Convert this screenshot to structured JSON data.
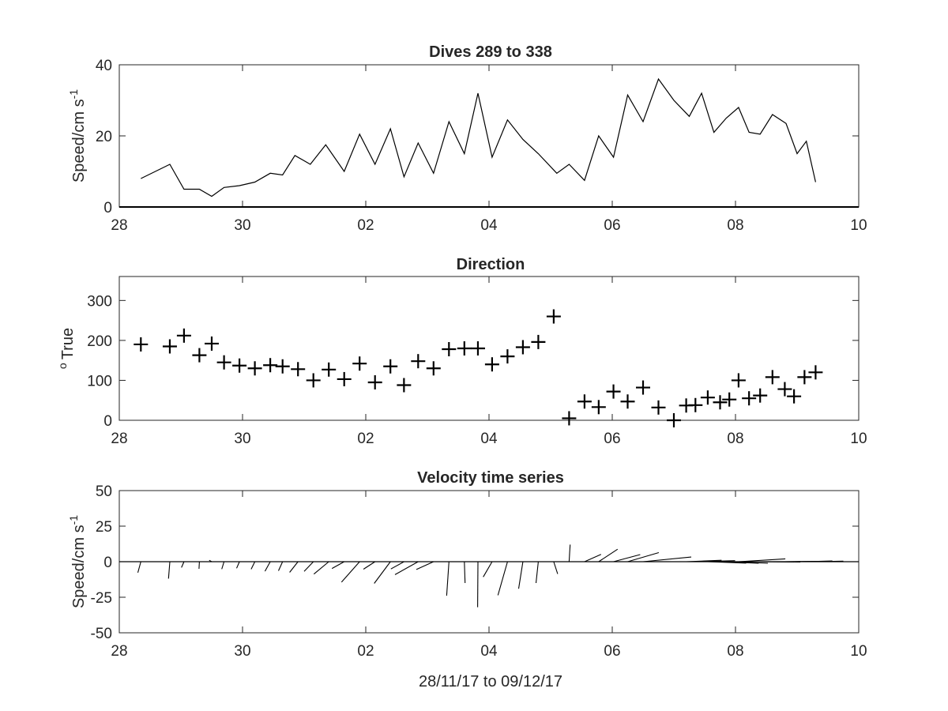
{
  "chart_data": [
    {
      "type": "line",
      "title": "Dives 289 to 338",
      "ylabel": "Speed/cm s",
      "ylabel_sup": "-1",
      "xlabel": "",
      "xlim": [
        28,
        40
      ],
      "ylim": [
        0,
        40
      ],
      "x_ticks": [
        28,
        30,
        32,
        34,
        36,
        38,
        40
      ],
      "x_tick_labels": [
        "28",
        "30",
        "02",
        "04",
        "06",
        "08",
        "10"
      ],
      "y_ticks": [
        0,
        20,
        40
      ],
      "y_tick_labels": [
        "0",
        "20",
        "40"
      ],
      "grid": false,
      "color": "#000000",
      "x": [
        28.35,
        28.82,
        29.05,
        29.3,
        29.5,
        29.7,
        29.95,
        30.2,
        30.45,
        30.65,
        30.85,
        31.1,
        31.35,
        31.65,
        31.9,
        32.15,
        32.4,
        32.62,
        32.85,
        33.1,
        33.35,
        33.6,
        33.82,
        34.05,
        34.3,
        34.55,
        34.8,
        35.1,
        35.3,
        35.55,
        35.78,
        36.02,
        36.25,
        36.5,
        36.75,
        37.0,
        37.25,
        37.45,
        37.65,
        37.85,
        38.05,
        38.22,
        38.4,
        38.6,
        38.82,
        39.0,
        39.15,
        39.3
      ],
      "y": [
        8,
        12,
        5,
        5,
        3,
        5.5,
        6,
        7,
        9.5,
        9,
        14.5,
        12,
        17.5,
        10,
        20.5,
        12,
        22,
        8.5,
        18,
        9.5,
        24,
        15,
        32,
        14,
        24.5,
        19,
        15,
        9.5,
        12,
        7.5,
        20,
        14,
        31.5,
        24,
        36,
        30,
        25.5,
        32,
        21,
        25,
        28,
        21,
        20.5,
        26,
        23.5,
        15,
        18.5,
        7
      ]
    },
    {
      "type": "scatter",
      "title": "Direction",
      "ylabel": "True",
      "ylabel_sup": "o",
      "xlabel": "",
      "xlim": [
        28,
        40
      ],
      "ylim": [
        0,
        360
      ],
      "x_ticks": [
        28,
        30,
        32,
        34,
        36,
        38,
        40
      ],
      "x_tick_labels": [
        "28",
        "30",
        "02",
        "04",
        "06",
        "08",
        "10"
      ],
      "y_ticks": [
        0,
        100,
        200,
        300
      ],
      "y_tick_labels": [
        "0",
        "100",
        "200",
        "300"
      ],
      "grid": false,
      "marker": "+",
      "color": "#000000",
      "x": [
        28.35,
        28.82,
        29.05,
        29.3,
        29.5,
        29.7,
        29.95,
        30.2,
        30.45,
        30.65,
        30.9,
        31.15,
        31.4,
        31.65,
        31.9,
        32.15,
        32.4,
        32.62,
        32.85,
        33.1,
        33.35,
        33.6,
        33.82,
        34.05,
        34.3,
        34.55,
        34.8,
        35.05,
        35.3,
        35.55,
        35.78,
        36.02,
        36.25,
        36.5,
        36.75,
        37.0,
        37.2,
        37.35,
        37.55,
        37.75,
        37.9,
        38.05,
        38.22,
        38.4,
        38.6,
        38.8,
        38.95,
        39.12,
        39.3
      ],
      "y": [
        190,
        185,
        212,
        163,
        192,
        145,
        137,
        130,
        138,
        135,
        128,
        100,
        127,
        103,
        142,
        95,
        135,
        88,
        148,
        130,
        178,
        180,
        180,
        140,
        160,
        183,
        196,
        260,
        5,
        47,
        33,
        72,
        47,
        82,
        32,
        0,
        37,
        38,
        57,
        45,
        52,
        100,
        55,
        62,
        108,
        78,
        60,
        108,
        120
      ]
    },
    {
      "type": "quiver",
      "title": "Velocity time series",
      "ylabel": "Speed/cm s",
      "ylabel_sup": "-1",
      "xlabel": "28/11/17 to 09/12/17",
      "xlim": [
        28,
        40
      ],
      "ylim": [
        -50,
        50
      ],
      "x_ticks": [
        28,
        30,
        32,
        34,
        36,
        38,
        40
      ],
      "x_tick_labels": [
        "28",
        "30",
        "02",
        "04",
        "06",
        "08",
        "10"
      ],
      "y_ticks": [
        -50,
        -25,
        0,
        25,
        50
      ],
      "y_tick_labels": [
        "-50",
        "-25",
        "0",
        "25",
        "50"
      ],
      "grid": false,
      "baseline": 0,
      "color": "#000000",
      "x": [
        28.35,
        28.82,
        29.05,
        29.3,
        29.5,
        29.7,
        29.95,
        30.2,
        30.45,
        30.65,
        30.9,
        31.15,
        31.4,
        31.65,
        31.9,
        32.15,
        32.4,
        32.62,
        32.85,
        33.1,
        33.35,
        33.6,
        33.82,
        34.05,
        34.3,
        34.55,
        34.8,
        35.05,
        35.3,
        35.55,
        35.78,
        36.02,
        36.25,
        36.5,
        36.75,
        37.0,
        37.2,
        37.35,
        37.55,
        37.75,
        37.9,
        38.05,
        38.22,
        38.4,
        38.6,
        38.8,
        38.95,
        39.12,
        39.3
      ],
      "u": [
        -2.1,
        -0.9,
        -1.8,
        -0.3,
        -1.8,
        -1.6,
        -2.0,
        -2.6,
        -3.7,
        -2.9,
        -5.9,
        -6.5,
        -10.5,
        -8.6,
        -12.7,
        -8.1,
        -11.4,
        -9.2,
        -16.3,
        -12.1,
        -1.6,
        0.5,
        -0.2,
        -6.2,
        -6.7,
        -3.0,
        -1.6,
        2.8,
        0.7,
        11.6,
        13.3,
        18.8,
        21.9,
        33.9,
        44.6,
        0.0,
        24.9,
        27.9,
        27.0,
        27.1,
        27.1,
        32.9,
        31.6,
        28.3,
        35.8,
        23.7,
        22.4,
        19.6,
        19.5
      ],
      "v": [
        -7.7,
        -11.9,
        -4.1,
        -5.0,
        1.0,
        -5.2,
        -4.6,
        -5.3,
        -6.7,
        -6.4,
        -7.5,
        -6.8,
        -8.7,
        -4.8,
        -14.4,
        -5.3,
        -15.3,
        -5.1,
        -9.1,
        -5.5,
        -23.9,
        -15.0,
        -32.0,
        -10.7,
        -23.6,
        -19.0,
        -15.0,
        -8.6,
        12.0,
        5.1,
        8.8,
        5.0,
        6.4,
        3.3,
        0.0,
        0.0,
        1.0,
        0.7,
        -1.0,
        -1.1,
        -1.1,
        2.0,
        -0.1,
        -0.2,
        0.0,
        0.3,
        0.2,
        0.5,
        0.4
      ]
    }
  ]
}
